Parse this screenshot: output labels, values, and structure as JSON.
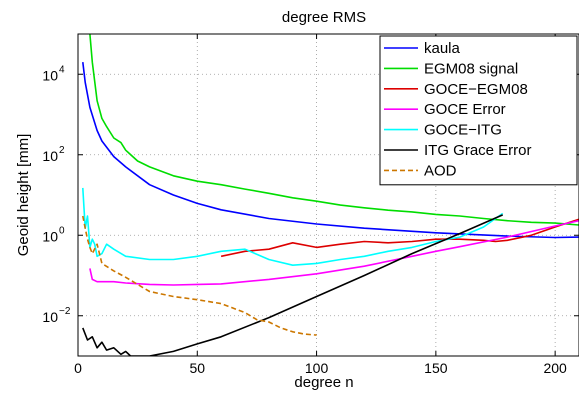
{
  "chart_data": {
    "type": "line",
    "title": "degree RMS",
    "xlabel": "degree n",
    "ylabel": "Geoid height [mm]",
    "xlim": [
      0,
      210
    ],
    "ylim_log10": [
      -3,
      5
    ],
    "y_scale": "log",
    "grid": "dotted",
    "legend_position": "top-right",
    "x_ticks": [
      {
        "value": 0,
        "label": "0"
      },
      {
        "value": 50,
        "label": "50"
      },
      {
        "value": 100,
        "label": "100"
      },
      {
        "value": 150,
        "label": "150"
      },
      {
        "value": 200,
        "label": "200"
      }
    ],
    "y_ticks": [
      {
        "exp": -2,
        "base": "10",
        "sup": "−2"
      },
      {
        "exp": 0,
        "base": "10",
        "sup": "0"
      },
      {
        "exp": 2,
        "base": "10",
        "sup": "2"
      },
      {
        "exp": 4,
        "base": "10",
        "sup": "4"
      }
    ],
    "series": [
      {
        "name": "kaula",
        "color": "#0000ff",
        "dash": "solid",
        "x": [
          2,
          3,
          5,
          8,
          10,
          15,
          20,
          30,
          40,
          50,
          60,
          80,
          100,
          120,
          150,
          180,
          200,
          210
        ],
        "y": [
          20000,
          6300,
          1500,
          400,
          220,
          90,
          50,
          18,
          10,
          6.2,
          4.3,
          2.6,
          1.9,
          1.5,
          1.15,
          0.95,
          0.88,
          0.9
        ]
      },
      {
        "name": "EGM08 signal",
        "color": "#00dd00",
        "dash": "solid",
        "x": [
          5,
          6,
          8,
          10,
          12,
          15,
          18,
          20,
          25,
          30,
          40,
          50,
          60,
          70,
          80,
          90,
          100,
          110,
          120,
          130,
          140,
          150,
          160,
          170,
          180,
          190,
          200,
          210
        ],
        "y": [
          100000,
          20000,
          2200,
          800,
          500,
          260,
          200,
          130,
          70,
          50,
          30,
          22,
          18,
          14,
          11,
          8.5,
          7,
          5.6,
          4.8,
          4.2,
          3.8,
          3.3,
          3.0,
          2.6,
          2.3,
          2.1,
          2.0,
          1.8
        ]
      },
      {
        "name": "GOCE−EGM08",
        "color": "#dd0000",
        "dash": "solid",
        "x": [
          60,
          70,
          80,
          90,
          100,
          110,
          120,
          130,
          140,
          150,
          160,
          170,
          175,
          180,
          190,
          200,
          210
        ],
        "y": [
          0.3,
          0.4,
          0.45,
          0.65,
          0.5,
          0.6,
          0.7,
          0.65,
          0.7,
          0.8,
          0.8,
          0.75,
          0.7,
          0.75,
          1.0,
          1.6,
          2.5
        ]
      },
      {
        "name": "GOCE Error",
        "color": "#ff00ff",
        "dash": "solid",
        "x": [
          5,
          6,
          8,
          10,
          15,
          20,
          30,
          40,
          50,
          60,
          80,
          100,
          120,
          140,
          150,
          160,
          180,
          200,
          210
        ],
        "y": [
          0.15,
          0.08,
          0.07,
          0.07,
          0.07,
          0.065,
          0.06,
          0.058,
          0.06,
          0.062,
          0.08,
          0.11,
          0.17,
          0.3,
          0.4,
          0.52,
          0.9,
          1.7,
          2.3
        ]
      },
      {
        "name": "GOCE−ITG",
        "color": "#00ffff",
        "dash": "solid",
        "x": [
          2,
          3,
          4,
          5,
          6,
          7,
          8,
          10,
          12,
          15,
          20,
          30,
          40,
          50,
          60,
          70,
          80,
          90,
          100,
          110,
          120,
          130,
          140,
          150,
          160,
          170,
          178
        ],
        "y": [
          15,
          1.5,
          3,
          0.5,
          0.8,
          0.6,
          0.3,
          0.35,
          0.6,
          0.45,
          0.3,
          0.25,
          0.25,
          0.3,
          0.4,
          0.45,
          0.25,
          0.18,
          0.2,
          0.25,
          0.3,
          0.4,
          0.5,
          0.7,
          0.9,
          1.6,
          3.5
        ]
      },
      {
        "name": "ITG Grace Error",
        "color": "#000000",
        "dash": "solid",
        "x": [
          2,
          4,
          6,
          8,
          10,
          12,
          15,
          18,
          20,
          22,
          25,
          30,
          40,
          50,
          60,
          80,
          100,
          120,
          140,
          160,
          178
        ],
        "y": [
          0.005,
          0.0025,
          0.003,
          0.0016,
          0.0022,
          0.0014,
          0.0016,
          0.0011,
          0.0013,
          0.001,
          0.001,
          0.001,
          0.0013,
          0.002,
          0.003,
          0.009,
          0.03,
          0.1,
          0.35,
          1.1,
          3.2
        ]
      },
      {
        "name": "AOD",
        "color": "#cc7700",
        "dash": "dashed",
        "x": [
          2,
          3,
          4,
          5,
          6,
          8,
          10,
          15,
          20,
          25,
          30,
          40,
          50,
          60,
          70,
          75,
          80,
          85,
          90,
          95,
          100
        ],
        "y": [
          3,
          1.5,
          0.8,
          0.5,
          0.35,
          0.6,
          0.2,
          0.13,
          0.09,
          0.06,
          0.04,
          0.03,
          0.025,
          0.02,
          0.012,
          0.008,
          0.007,
          0.005,
          0.004,
          0.0035,
          0.0033
        ]
      }
    ]
  }
}
